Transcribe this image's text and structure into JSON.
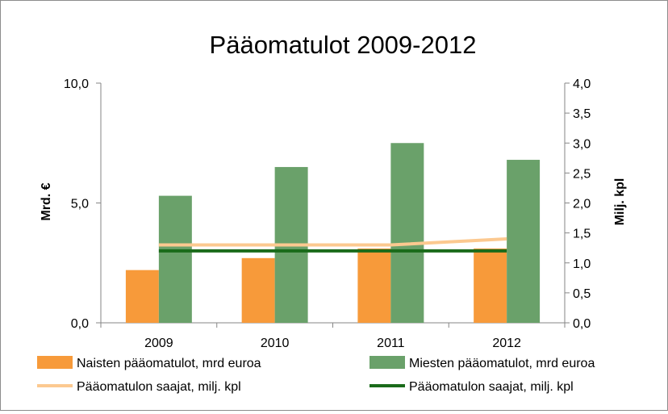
{
  "chart_data": {
    "type": "bar",
    "title": "Pääomatulot 2009-2012",
    "categories": [
      "2009",
      "2010",
      "2011",
      "2012"
    ],
    "ylabel_left": "Mrd. €",
    "ylabel_right": "Milj. kpl",
    "ylim_left": [
      0,
      10
    ],
    "ylim_right": [
      0,
      4
    ],
    "yticks_left": [
      "0,0",
      "5,0",
      "10,0"
    ],
    "yticks_right": [
      "0,0",
      "0,5",
      "1,0",
      "1,5",
      "2,0",
      "2,5",
      "3,0",
      "3,5",
      "4,0"
    ],
    "grid": false,
    "legend_position": "bottom",
    "bar_series": [
      {
        "name": "Naisten pääomatulot, mrd  euroa",
        "color": "#f79a3a",
        "axis": "left",
        "values": [
          2.2,
          2.7,
          3.1,
          3.1
        ]
      },
      {
        "name": "Miesten pääomatulot, mrd  euroa",
        "color": "#6aa16a",
        "axis": "left",
        "values": [
          5.3,
          6.5,
          7.5,
          6.8
        ]
      }
    ],
    "line_series": [
      {
        "name": "Pääomatulon saajat, milj. kpl",
        "color": "#fcc990",
        "axis": "right",
        "values": [
          1.3,
          1.3,
          1.3,
          1.4
        ]
      },
      {
        "name": "Pääomatulon saajat, milj. kpl",
        "color": "#1a6b1a",
        "axis": "right",
        "values": [
          1.2,
          1.2,
          1.2,
          1.2
        ]
      }
    ]
  }
}
